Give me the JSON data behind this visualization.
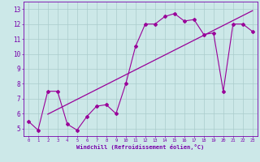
{
  "x": [
    0,
    1,
    2,
    3,
    4,
    5,
    6,
    7,
    8,
    9,
    10,
    11,
    12,
    13,
    14,
    15,
    16,
    17,
    18,
    19,
    20,
    21,
    22,
    23
  ],
  "y": [
    5.5,
    4.9,
    7.5,
    7.5,
    5.3,
    4.9,
    5.8,
    6.5,
    6.6,
    6.0,
    8.0,
    10.5,
    12.0,
    12.0,
    12.5,
    12.7,
    12.2,
    12.3,
    11.3,
    11.4,
    7.5,
    12.0,
    12.0,
    11.5
  ],
  "trend_x": [
    2,
    23
  ],
  "line_color": "#990099",
  "bg_color": "#cce8e8",
  "grid_color": "#aacccc",
  "axis_color": "#7700aa",
  "xlabel": "Windchill (Refroidissement éolien,°C)",
  "ylim": [
    4.5,
    13.5
  ],
  "xlim": [
    -0.5,
    23.5
  ],
  "yticks": [
    5,
    6,
    7,
    8,
    9,
    10,
    11,
    12,
    13
  ],
  "xticks": [
    0,
    1,
    2,
    3,
    4,
    5,
    6,
    7,
    8,
    9,
    10,
    11,
    12,
    13,
    14,
    15,
    16,
    17,
    18,
    19,
    20,
    21,
    22,
    23
  ]
}
